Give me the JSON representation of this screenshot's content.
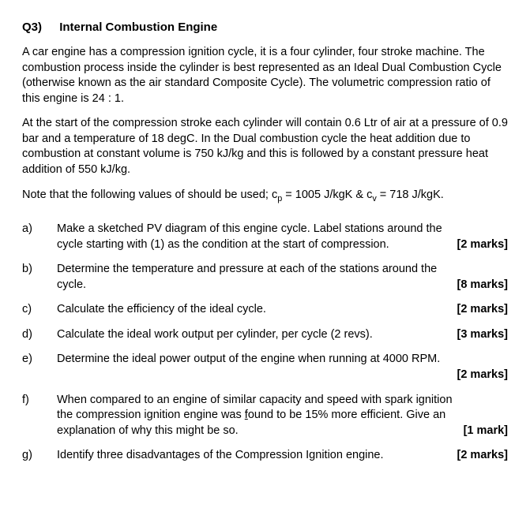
{
  "heading": {
    "qnum": "Q3)",
    "title": "Internal Combustion Engine"
  },
  "paras": [
    "A car engine has a compression ignition cycle, it is a four cylinder, four stroke machine. The combustion process inside the cylinder is best represented as an Ideal Dual Combustion Cycle (otherwise known as the air standard Composite Cycle). The volumetric compression ratio of this engine is 24 : 1.",
    "At the start of the compression stroke each cylinder will contain 0.6 Ltr of air at a pressure of 0.9 bar and a temperature of 18 degC. In the Dual combustion cycle the heat addition due to combustion at constant volume is 750 kJ/kg and this is followed by a constant pressure heat addition of 550 kJ/kg."
  ],
  "note": {
    "prefix": "Note that the following values of should be used; c",
    "sub1": "p",
    "mid": " = 1005 J/kgK & c",
    "sub2": "v",
    "suffix": " = 718 J/kgK."
  },
  "items": {
    "a": {
      "letter": "a)",
      "line1": "Make a sketched PV diagram of this engine cycle. Label stations around the",
      "line2": "cycle starting with (1) as the condition at the start of compression.",
      "marks": "[2 marks]"
    },
    "b": {
      "letter": "b)",
      "line1": "Determine the temperature and pressure at each of the stations around the",
      "line2": "cycle.",
      "marks": "[8 marks]"
    },
    "c": {
      "letter": "c)",
      "text": "Calculate the efficiency of the ideal cycle.",
      "marks": "[2 marks]"
    },
    "d": {
      "letter": "d)",
      "text": "Calculate the ideal work output per cylinder, per cycle (2 revs).",
      "marks": "[3 marks]"
    },
    "e": {
      "letter": "e)",
      "line1": "Determine the ideal power output of the engine when running at 4000 RPM.",
      "marks": "[2 marks]"
    },
    "f": {
      "letter": "f)",
      "line1": "When compared to an engine of similar capacity and speed with spark ignition",
      "line2a": "the compression ignition engine was ",
      "line2u": "f",
      "line2b": "ound to be 15% more efficient. Give an",
      "line3": "explanation of why this might be so.",
      "marks": "[1 mark]"
    },
    "g": {
      "letter": "g)",
      "text": "Identify three disadvantages of the Compression Ignition engine.",
      "marks": "[2 marks]"
    }
  }
}
